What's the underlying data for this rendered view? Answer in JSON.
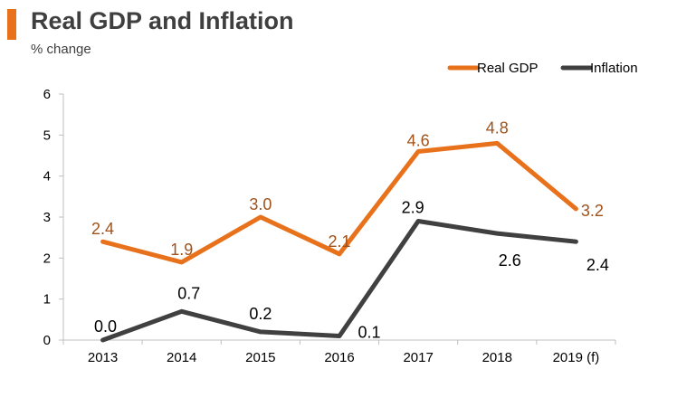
{
  "header": {
    "title": "Real GDP and Inflation",
    "subtitle": "% change",
    "accent_color": "#e8711c"
  },
  "chart_data": {
    "type": "line",
    "title": "Real GDP and Inflation",
    "subtitle": "% change",
    "xlabel": "",
    "ylabel": "",
    "categories": [
      "2013",
      "2014",
      "2015",
      "2016",
      "2017",
      "2018",
      "2019 (f)"
    ],
    "ylim": [
      0,
      6
    ],
    "yticks": [
      0,
      1,
      2,
      3,
      4,
      5,
      6
    ],
    "grid": false,
    "legend_position": "top-right",
    "series": [
      {
        "name": "Real GDP",
        "color": "#e8711c",
        "label_color": "#a0521a",
        "values": [
          2.4,
          1.9,
          3.0,
          2.1,
          4.6,
          4.8,
          3.2
        ],
        "labels": [
          "2.4",
          "1.9",
          "3.0",
          "2.1",
          "4.6",
          "4.8",
          "3.2"
        ]
      },
      {
        "name": "Inflation",
        "color": "#404040",
        "label_color": "#000000",
        "values": [
          0.0,
          0.7,
          0.2,
          0.1,
          2.9,
          2.6,
          2.4
        ],
        "labels": [
          "0.0",
          "0.7",
          "0.2",
          "0.1",
          "2.9",
          "2.6",
          "2.4"
        ]
      }
    ]
  }
}
